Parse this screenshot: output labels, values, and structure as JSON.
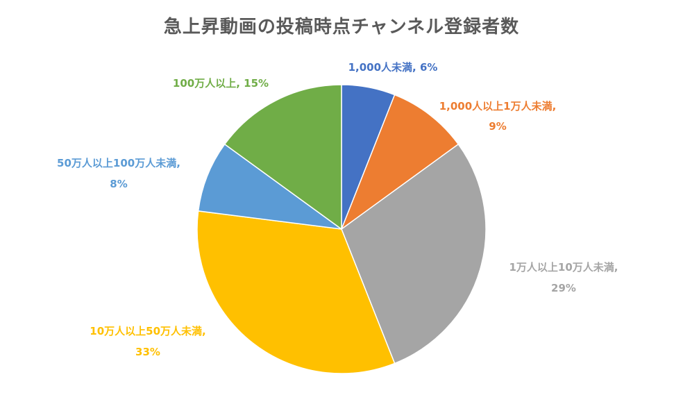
{
  "chart_data": {
    "type": "pie",
    "title": "急上昇動画の投稿時点チャンネル登録者数",
    "start_angle_deg": 0,
    "direction": "clockwise",
    "slices": [
      {
        "label": "1,000人未満",
        "value": 6,
        "value_text": "6%",
        "color": "#4472C4"
      },
      {
        "label": "1,000人以上1万人未満",
        "value": 9,
        "value_text": "9%",
        "color": "#ED7D31"
      },
      {
        "label": "1万人以上10万人未満",
        "value": 29,
        "value_text": "29%",
        "color": "#A5A5A5"
      },
      {
        "label": "10万人以上50万人未満",
        "value": 33,
        "value_text": "33%",
        "color": "#FFC000"
      },
      {
        "label": "50万人以上100万人未満",
        "value": 8,
        "value_text": "8%",
        "color": "#5B9BD5"
      },
      {
        "label": "100万人以上",
        "value": 15,
        "value_text": "15%",
        "color": "#70AD47"
      }
    ]
  }
}
